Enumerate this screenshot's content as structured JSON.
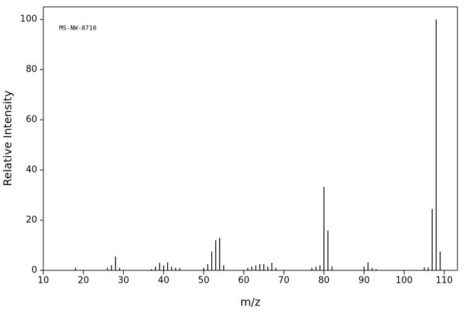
{
  "chart_data": {
    "type": "stem",
    "annotation": "MS-NW-8710",
    "x_label": "m/z",
    "y_label": "Relative Intensity",
    "x": [
      18,
      26,
      27,
      28,
      29,
      37,
      38,
      39,
      40,
      41,
      42,
      43,
      44,
      50,
      51,
      52,
      53,
      54,
      55,
      61,
      62,
      63,
      64,
      65,
      66,
      67,
      68,
      77,
      78,
      79,
      80,
      81,
      82,
      90,
      91,
      92,
      93,
      105,
      106,
      107,
      108,
      109
    ],
    "values": [
      1,
      1,
      2,
      5.5,
      1,
      0.5,
      1.5,
      3,
      2,
      3.2,
      1.5,
      1,
      0.8,
      1,
      2.5,
      7.5,
      12,
      13,
      2,
      1,
      1.5,
      2,
      2.5,
      2.5,
      1.5,
      3,
      1,
      1,
      1.5,
      2,
      33.3,
      15.8,
      1.5,
      1.5,
      3.2,
      1,
      0.5,
      1.2,
      1.2,
      24.5,
      100,
      7.5
    ],
    "color": "#000000",
    "xlim": [
      10,
      113.3
    ],
    "xticks": [
      10,
      20,
      30,
      40,
      50,
      60,
      70,
      80,
      90,
      100,
      110
    ],
    "ylim": [
      0,
      105
    ],
    "yticks": [
      0,
      20,
      40,
      60,
      80,
      100
    ]
  }
}
